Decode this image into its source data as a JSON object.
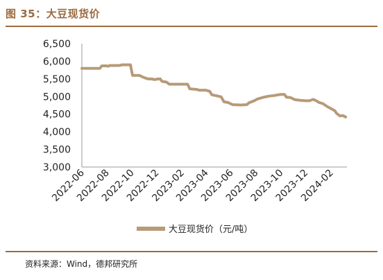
{
  "figure": {
    "title": "图 35：大豆现货价",
    "source": "资料来源：Wind，德邦研究所"
  },
  "colors": {
    "accent": "#9b6b3f",
    "series_line": "#b79a78"
  },
  "chart_data": {
    "type": "line",
    "title": "",
    "xlabel": "",
    "ylabel": "",
    "ylim": [
      3000,
      6500
    ],
    "yticks": [
      3000,
      3500,
      4000,
      4500,
      5000,
      5500,
      6000,
      6500
    ],
    "xlim": [
      "2022-06",
      "2024-03"
    ],
    "xtick_labels": [
      "2022-06",
      "2022-08",
      "2022-10",
      "2022-12",
      "2023-02",
      "2023-04",
      "2023-06",
      "2023-08",
      "2023-10",
      "2023-12",
      "2024-02"
    ],
    "grid": false,
    "legend_position": "bottom",
    "series": [
      {
        "name": "大豆现货价（元/吨）",
        "points": [
          [
            "2022-06-01",
            5800
          ],
          [
            "2022-07-15",
            5800
          ],
          [
            "2022-07-20",
            5870
          ],
          [
            "2022-07-31",
            5870
          ],
          [
            "2022-08-05",
            5860
          ],
          [
            "2022-08-08",
            5880
          ],
          [
            "2022-08-31",
            5880
          ],
          [
            "2022-09-08",
            5900
          ],
          [
            "2022-09-28",
            5900
          ],
          [
            "2022-10-03",
            5600
          ],
          [
            "2022-10-20",
            5600
          ],
          [
            "2022-10-25",
            5570
          ],
          [
            "2022-11-02",
            5530
          ],
          [
            "2022-11-10",
            5500
          ],
          [
            "2022-11-20",
            5500
          ],
          [
            "2022-11-25",
            5480
          ],
          [
            "2022-12-05",
            5500
          ],
          [
            "2022-12-10",
            5500
          ],
          [
            "2022-12-14",
            5430
          ],
          [
            "2022-12-25",
            5410
          ],
          [
            "2023-01-01",
            5350
          ],
          [
            "2023-01-20",
            5350
          ],
          [
            "2023-02-15",
            5350
          ],
          [
            "2023-02-20",
            5220
          ],
          [
            "2023-03-10",
            5200
          ],
          [
            "2023-03-15",
            5180
          ],
          [
            "2023-03-31",
            5180
          ],
          [
            "2023-04-10",
            5150
          ],
          [
            "2023-04-15",
            5050
          ],
          [
            "2023-04-28",
            5020
          ],
          [
            "2023-05-08",
            4990
          ],
          [
            "2023-05-15",
            4850
          ],
          [
            "2023-05-25",
            4830
          ],
          [
            "2023-06-05",
            4770
          ],
          [
            "2023-06-25",
            4760
          ],
          [
            "2023-07-10",
            4770
          ],
          [
            "2023-07-15",
            4820
          ],
          [
            "2023-07-28",
            4880
          ],
          [
            "2023-08-05",
            4930
          ],
          [
            "2023-08-20",
            4980
          ],
          [
            "2023-09-01",
            5010
          ],
          [
            "2023-09-15",
            5030
          ],
          [
            "2023-10-01",
            5060
          ],
          [
            "2023-10-10",
            5060
          ],
          [
            "2023-10-15",
            4980
          ],
          [
            "2023-10-25",
            4970
          ],
          [
            "2023-11-05",
            4910
          ],
          [
            "2023-11-20",
            4890
          ],
          [
            "2023-12-01",
            4880
          ],
          [
            "2023-12-10",
            4880
          ],
          [
            "2023-12-20",
            4920
          ],
          [
            "2023-12-27",
            4880
          ],
          [
            "2024-01-03",
            4830
          ],
          [
            "2024-01-12",
            4800
          ],
          [
            "2024-01-22",
            4720
          ],
          [
            "2024-02-01",
            4660
          ],
          [
            "2024-02-10",
            4600
          ],
          [
            "2024-02-15",
            4520
          ],
          [
            "2024-02-23",
            4450
          ],
          [
            "2024-03-01",
            4460
          ],
          [
            "2024-03-08",
            4420
          ]
        ]
      }
    ]
  }
}
